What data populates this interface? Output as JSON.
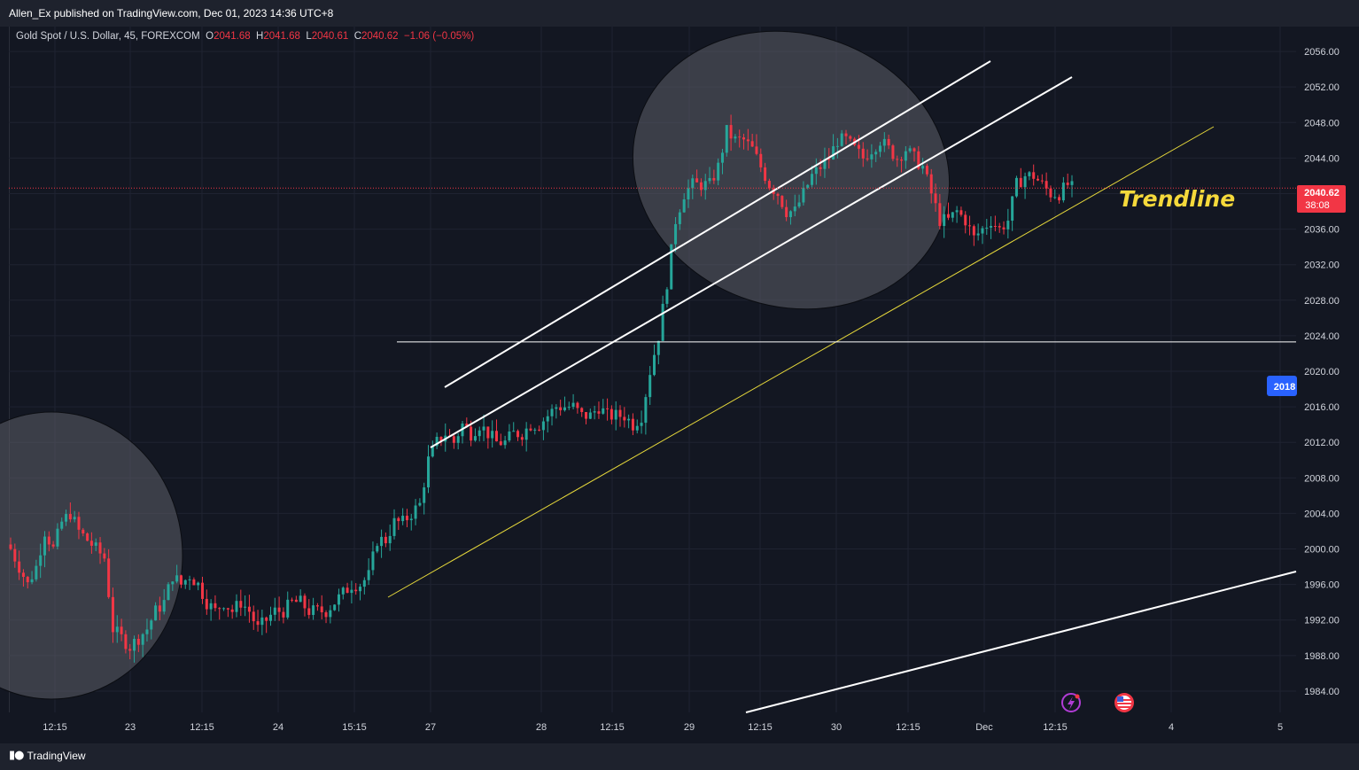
{
  "publisher": "Allen_Ex published on TradingView.com, Dec 01, 2023 14:36 UTC+8",
  "legend": {
    "symbol": "Gold Spot / U.S. Dollar, 45, FOREXCOM",
    "o_label": "O",
    "o_value": "2041.68",
    "h_label": "H",
    "h_value": "2041.68",
    "l_label": "L",
    "l_value": "2040.61",
    "c_label": "C",
    "c_value": "2040.62",
    "change": "−1.06 (−0.05%)"
  },
  "colors": {
    "background": "#131722",
    "up": "#26a69a",
    "down": "#f23645",
    "grid": "#1f2331",
    "trendline": "#e6d83b",
    "channel": "#ffffff",
    "price_badge": "#f23645",
    "alert_badge": "#2962ff",
    "ellipse": "#4a4d58"
  },
  "footer": {
    "brand": "TradingView"
  },
  "chart_data": {
    "type": "candlestick",
    "y_axis_ticks": [
      "2056.00",
      "2052.00",
      "2048.00",
      "2044.00",
      "2040.00",
      "2036.00",
      "2032.00",
      "2028.00",
      "2024.00",
      "2020.00",
      "2016.00",
      "2012.00",
      "2008.00",
      "2004.00",
      "2000.00",
      "1996.00",
      "1992.00",
      "1988.00",
      "1984.00"
    ],
    "ylim": [
      1981.6,
      2058.8
    ],
    "x_axis_ticks": [
      "12:15",
      "23",
      "12:15",
      "24",
      "15:15",
      "27",
      "28",
      "12:15",
      "29",
      "12:15",
      "30",
      "12:15",
      "Dec",
      "12:15",
      "4",
      "5"
    ],
    "current_price": "2040.62",
    "countdown": "38:08",
    "alert_label": "2018",
    "annotation_text": "Trendline",
    "horizontal_level": 2023.3,
    "grid": true,
    "close_path": [
      [
        0,
        2000
      ],
      [
        2,
        1998
      ],
      [
        4,
        1996
      ],
      [
        6,
        1998
      ],
      [
        8,
        2002
      ],
      [
        10,
        2000
      ],
      [
        12,
        2003
      ],
      [
        14,
        2004
      ],
      [
        16,
        2002
      ],
      [
        18,
        2001
      ],
      [
        20,
        2000
      ],
      [
        22,
        1999
      ],
      [
        24,
        1991
      ],
      [
        26,
        1990
      ],
      [
        28,
        1989
      ],
      [
        30,
        1990
      ],
      [
        32,
        1991
      ],
      [
        34,
        1993
      ],
      [
        36,
        1994
      ],
      [
        38,
        1997
      ],
      [
        40,
        1996
      ],
      [
        42,
        1997
      ],
      [
        44,
        1996
      ],
      [
        46,
        1994
      ],
      [
        48,
        1993
      ],
      [
        50,
        1994
      ],
      [
        52,
        1993
      ],
      [
        54,
        1994
      ],
      [
        56,
        1993
      ],
      [
        58,
        1991
      ],
      [
        60,
        1992
      ],
      [
        62,
        1993
      ],
      [
        64,
        1993
      ],
      [
        66,
        1994
      ],
      [
        68,
        1994
      ],
      [
        70,
        1993
      ],
      [
        72,
        1993
      ],
      [
        74,
        1993
      ],
      [
        76,
        1994
      ],
      [
        78,
        1995
      ],
      [
        80,
        1996
      ],
      [
        82,
        1996
      ],
      [
        84,
        1997
      ],
      [
        86,
        2001
      ],
      [
        88,
        2001
      ],
      [
        90,
        2003
      ],
      [
        92,
        2003
      ],
      [
        94,
        2004
      ],
      [
        96,
        2005
      ],
      [
        98,
        2010
      ],
      [
        100,
        2012
      ],
      [
        102,
        2013
      ],
      [
        104,
        2012
      ],
      [
        106,
        2014
      ],
      [
        108,
        2013
      ],
      [
        110,
        2014
      ],
      [
        112,
        2013
      ],
      [
        114,
        2012
      ],
      [
        116,
        2012
      ],
      [
        118,
        2013
      ],
      [
        120,
        2013
      ],
      [
        122,
        2014
      ],
      [
        124,
        2014
      ],
      [
        126,
        2015
      ],
      [
        128,
        2016
      ],
      [
        130,
        2016
      ],
      [
        132,
        2016
      ],
      [
        134,
        2015
      ],
      [
        136,
        2015
      ],
      [
        138,
        2016
      ],
      [
        140,
        2015
      ],
      [
        142,
        2015
      ],
      [
        144,
        2015
      ],
      [
        146,
        2014
      ],
      [
        148,
        2015
      ],
      [
        150,
        2020
      ],
      [
        152,
        2024
      ],
      [
        154,
        2030
      ],
      [
        156,
        2037
      ],
      [
        158,
        2040
      ],
      [
        160,
        2041
      ],
      [
        162,
        2041
      ],
      [
        164,
        2041
      ],
      [
        166,
        2043
      ],
      [
        168,
        2047
      ],
      [
        170,
        2046
      ],
      [
        172,
        2046
      ],
      [
        174,
        2045
      ],
      [
        176,
        2043
      ],
      [
        178,
        2041
      ],
      [
        180,
        2040
      ],
      [
        182,
        2038
      ],
      [
        184,
        2038
      ],
      [
        186,
        2040
      ],
      [
        188,
        2042
      ],
      [
        190,
        2043
      ],
      [
        192,
        2044
      ],
      [
        194,
        2046
      ],
      [
        196,
        2046
      ],
      [
        198,
        2045
      ],
      [
        200,
        2044
      ],
      [
        202,
        2045
      ],
      [
        204,
        2046
      ],
      [
        206,
        2045
      ],
      [
        208,
        2044
      ],
      [
        210,
        2045
      ],
      [
        212,
        2044
      ],
      [
        214,
        2043
      ],
      [
        216,
        2040
      ],
      [
        218,
        2037
      ],
      [
        220,
        2037
      ],
      [
        222,
        2038
      ],
      [
        224,
        2037
      ],
      [
        226,
        2035
      ],
      [
        228,
        2036
      ],
      [
        230,
        2037
      ],
      [
        232,
        2036
      ],
      [
        234,
        2037
      ],
      [
        236,
        2041
      ],
      [
        238,
        2042
      ],
      [
        240,
        2042
      ],
      [
        242,
        2041
      ],
      [
        244,
        2040
      ],
      [
        246,
        2040
      ],
      [
        248,
        2041
      ],
      [
        249,
        2040.62
      ]
    ]
  }
}
